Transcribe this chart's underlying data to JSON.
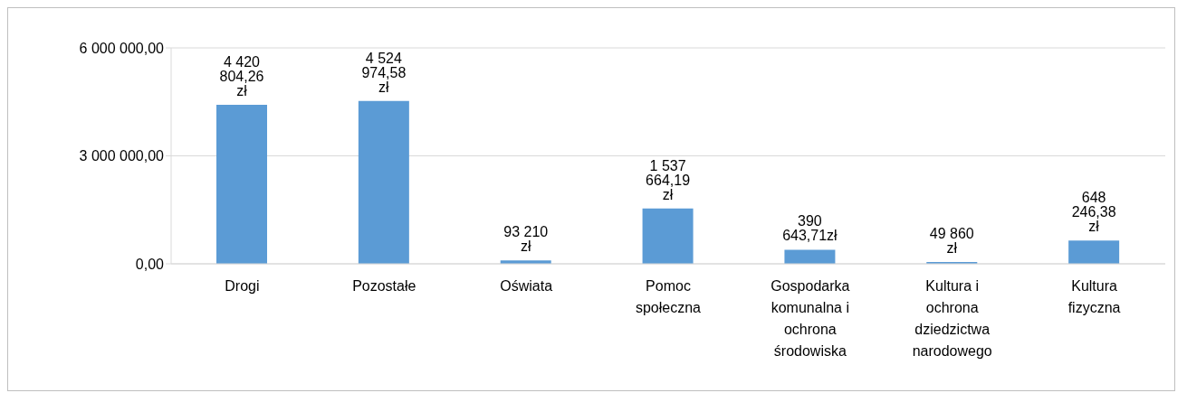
{
  "chart_data": {
    "type": "bar",
    "categories": [
      "Drogi",
      "Pozostałe",
      "Oświata",
      "Pomoc społeczna",
      "Gospodarka komunalna i ochrona środowiska",
      "Kultura i ochrona dziedzictwa narodowego",
      "Kultura fizyczna"
    ],
    "values": [
      4420804.26,
      4524974.58,
      93210,
      1537664.19,
      390643.71,
      49860,
      648246.38
    ],
    "value_labels": [
      "4 420 804,26 zł",
      "4 524 974,58 zł",
      "93 210 zł",
      "1 537 664,19 zł",
      "390 643,71zł",
      "49 860 zł",
      "648 246,38 zł"
    ],
    "color": "#5b9bd5",
    "ylim": [
      0,
      6000000
    ],
    "yticks": [
      {
        "value": 0,
        "label": "0,00"
      },
      {
        "value": 3000000,
        "label": "3 000 000,00"
      },
      {
        "value": 6000000,
        "label": "6 000 000,00"
      }
    ],
    "grid": "y",
    "legend": false
  }
}
